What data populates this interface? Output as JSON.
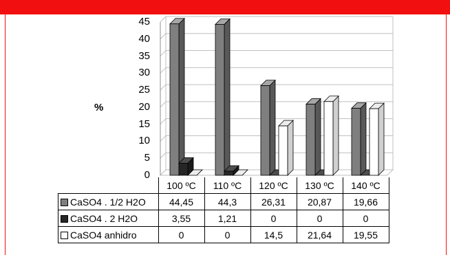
{
  "chart_data": {
    "type": "bar",
    "ylabel": "%",
    "ylim": [
      0,
      45
    ],
    "yticks": [
      0,
      5,
      10,
      15,
      20,
      25,
      30,
      35,
      40,
      45
    ],
    "categories": [
      "100 ºC",
      "110 ºC",
      "120 ºC",
      "130 ºC",
      "140 ºC"
    ],
    "series": [
      {
        "name": "CaSO4 . 1/2 H2O",
        "color": "#7f7f7f",
        "values": [
          44.45,
          44.3,
          26.31,
          20.87,
          19.66
        ],
        "value_labels": [
          "44,45",
          "44,3",
          "26,31",
          "20,87",
          "19,66"
        ]
      },
      {
        "name": "CaSO4 . 2 H2O",
        "color": "#262626",
        "values": [
          3.55,
          1.21,
          0,
          0,
          0
        ],
        "value_labels": [
          "3,55",
          "1,21",
          "0",
          "0",
          "0"
        ]
      },
      {
        "name": "CaSO4 anhidro",
        "color": "#ffffff",
        "values": [
          0,
          0,
          14.5,
          21.64,
          19.55
        ],
        "value_labels": [
          "0",
          "0",
          "14,5",
          "21,64",
          "19,55"
        ]
      }
    ],
    "grid": true,
    "legend": "data table"
  }
}
